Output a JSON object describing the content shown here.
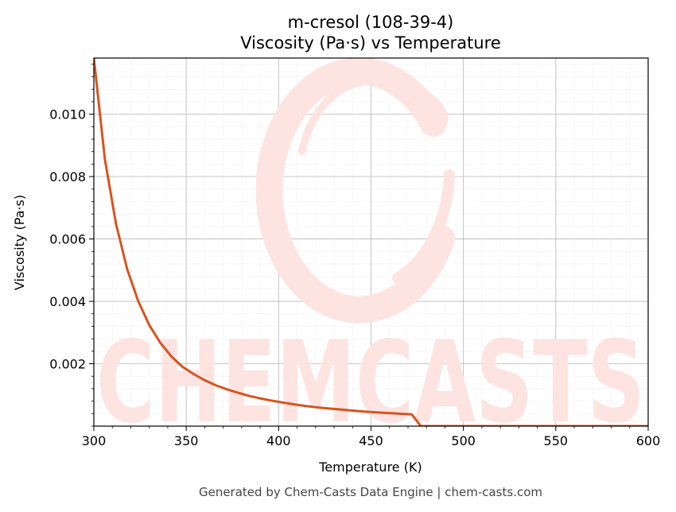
{
  "chart_data": {
    "type": "line",
    "title": "m-cresol (108-39-4)",
    "subtitle": "Viscosity (Pa·s) vs Temperature",
    "xlabel": "Temperature (K)",
    "ylabel": "Viscosity (Pa·s)",
    "xlim": [
      300,
      600
    ],
    "ylim": [
      0,
      0.0118
    ],
    "xticks": [
      300,
      350,
      400,
      450,
      500,
      550,
      600
    ],
    "xtick_labels": [
      "300",
      "350",
      "400",
      "450",
      "500",
      "550",
      "600"
    ],
    "yticks": [
      0.002,
      0.004,
      0.006,
      0.008,
      0.01
    ],
    "ytick_labels": [
      "0.002",
      "0.004",
      "0.006",
      "0.008",
      "0.010"
    ],
    "grid": true,
    "series_color": "#d9531e",
    "x": [
      300,
      306,
      312,
      318,
      324,
      330,
      336,
      342,
      348,
      354,
      360,
      366,
      372,
      378,
      384,
      390,
      396,
      402,
      408,
      414,
      420,
      426,
      432,
      438,
      444,
      450,
      456,
      462,
      468,
      472,
      477,
      480,
      490,
      500,
      520,
      540,
      560,
      580,
      600
    ],
    "y": [
      0.0118,
      0.00855,
      0.00648,
      0.00504,
      0.00401,
      0.00324,
      0.00267,
      0.00223,
      0.0019,
      0.00167,
      0.00147,
      0.00131,
      0.00118,
      0.00107,
      0.00097,
      0.00089,
      0.00082,
      0.00076,
      0.0007,
      0.00065,
      0.00061,
      0.00057,
      0.00054,
      0.00051,
      0.00048,
      0.00045,
      0.00043,
      0.00041,
      0.00039,
      0.00038,
      0.0,
      0.0,
      0.0,
      0.0,
      0.0,
      0.0,
      0.0,
      0.0,
      0.0
    ]
  },
  "watermark": {
    "text": "CHEMCASTS",
    "color": "#fde4e1"
  },
  "footer": "Generated by Chem-Casts Data Engine | chem-casts.com"
}
